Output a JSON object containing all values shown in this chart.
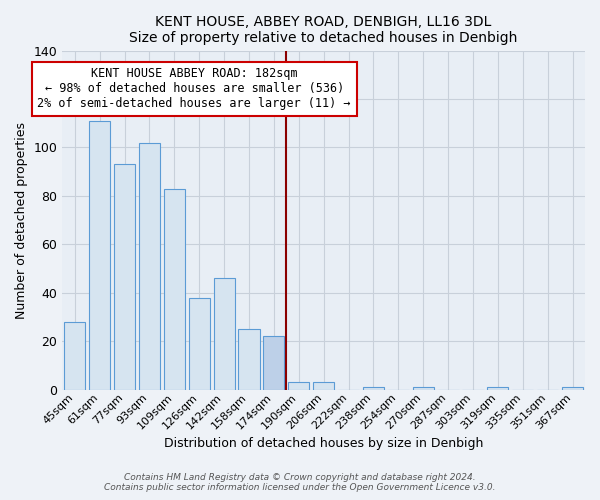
{
  "title": "KENT HOUSE, ABBEY ROAD, DENBIGH, LL16 3DL",
  "subtitle": "Size of property relative to detached houses in Denbigh",
  "xlabel": "Distribution of detached houses by size in Denbigh",
  "ylabel": "Number of detached properties",
  "bar_labels": [
    "45sqm",
    "61sqm",
    "77sqm",
    "93sqm",
    "109sqm",
    "126sqm",
    "142sqm",
    "158sqm",
    "174sqm",
    "190sqm",
    "206sqm",
    "222sqm",
    "238sqm",
    "254sqm",
    "270sqm",
    "287sqm",
    "303sqm",
    "319sqm",
    "335sqm",
    "351sqm",
    "367sqm"
  ],
  "bar_values": [
    28,
    111,
    93,
    102,
    83,
    38,
    46,
    25,
    22,
    3,
    3,
    0,
    1,
    0,
    1,
    0,
    0,
    1,
    0,
    0,
    1
  ],
  "bar_color": "#d6e4f0",
  "bar_edge_color": "#5b9bd5",
  "highlight_index": 8,
  "highlight_color": "#bdd0e8",
  "highlight_edge_color": "#5b9bd5",
  "vline_color": "#8b0000",
  "ylim": [
    0,
    140
  ],
  "yticks": [
    0,
    20,
    40,
    60,
    80,
    100,
    120,
    140
  ],
  "annotation_title": "KENT HOUSE ABBEY ROAD: 182sqm",
  "annotation_line1": "← 98% of detached houses are smaller (536)",
  "annotation_line2": "2% of semi-detached houses are larger (11) →",
  "annotation_box_color": "#ffffff",
  "annotation_box_edge": "#cc0000",
  "footer1": "Contains HM Land Registry data © Crown copyright and database right 2024.",
  "footer2": "Contains public sector information licensed under the Open Government Licence v3.0.",
  "bg_color": "#eef2f7",
  "plot_bg_color": "#e8eef5",
  "grid_color": "#c8d0da"
}
